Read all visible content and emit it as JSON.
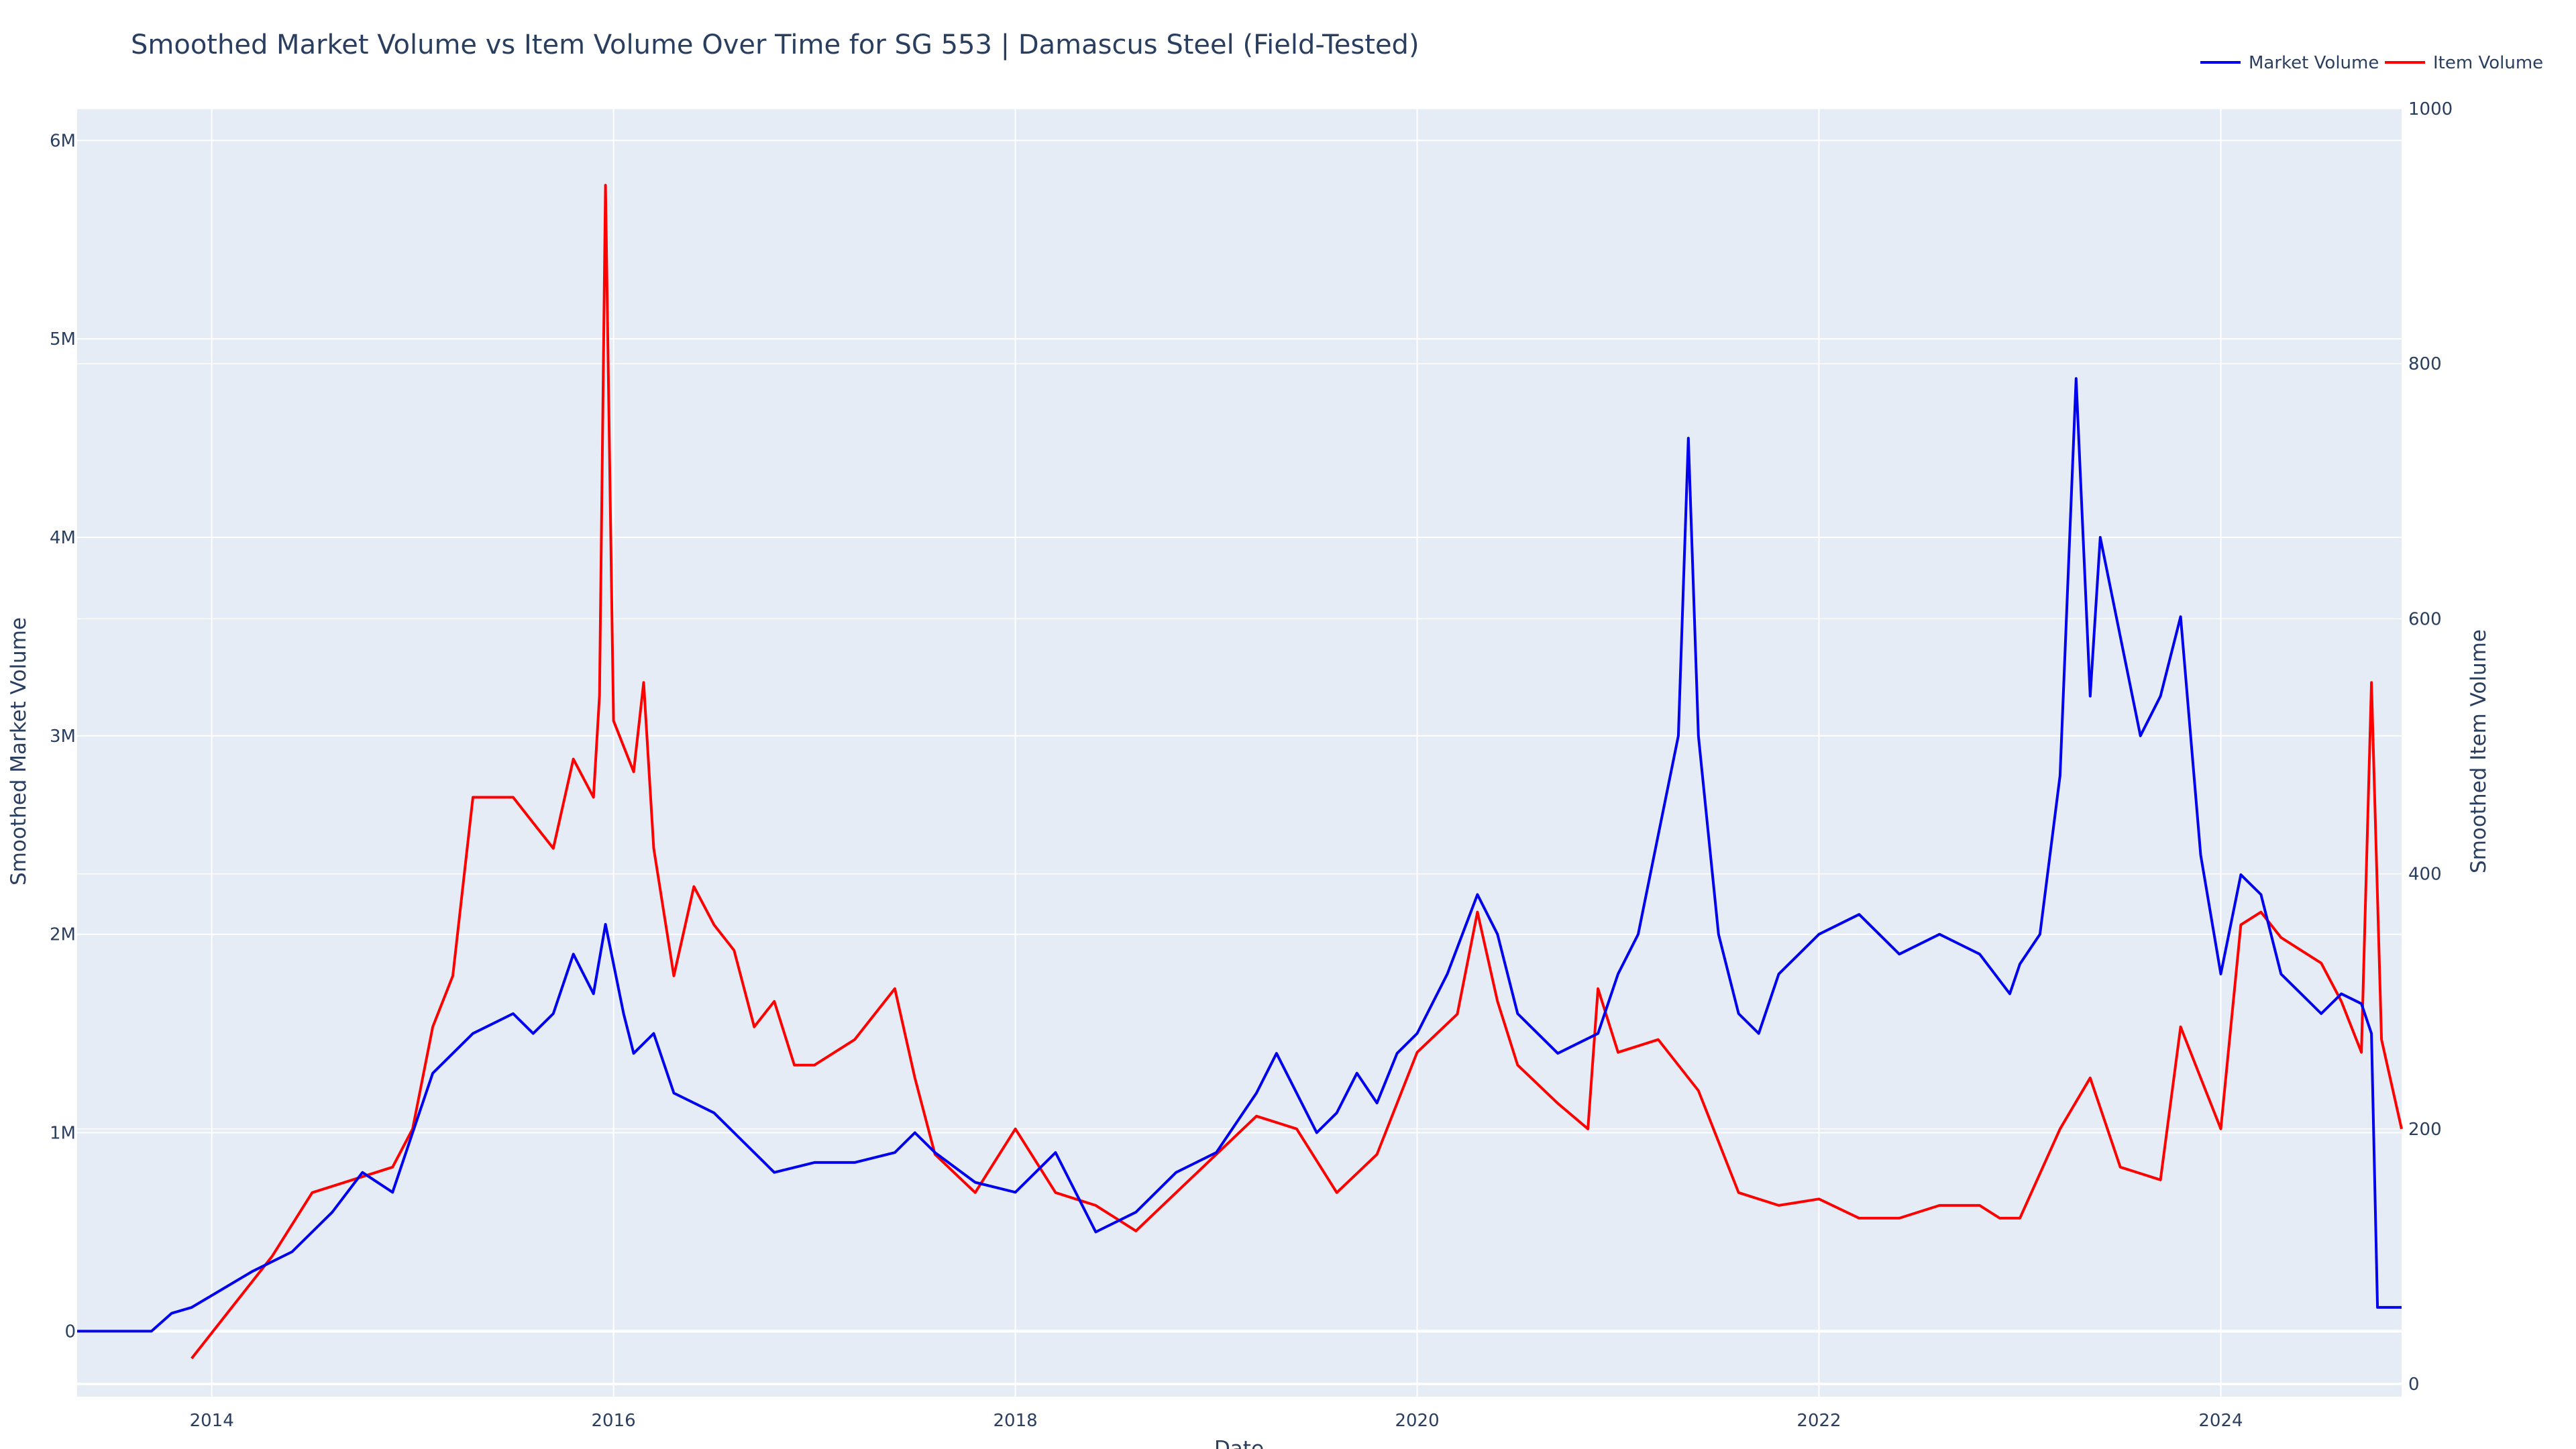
{
  "chart_data": {
    "type": "line",
    "title": "Smoothed Market Volume vs Item Volume Over Time for SG 553 | Damascus Steel (Field-Tested)",
    "xlabel": "Date",
    "ylabel": "Smoothed Market Volume",
    "y2label": "Smoothed Item Volume",
    "x_tick_labels": [
      "2014",
      "2016",
      "2018",
      "2020",
      "2022",
      "2024"
    ],
    "x_tick_years": [
      2014,
      2016,
      2018,
      2020,
      2022,
      2024
    ],
    "xlim": [
      2013.33,
      2024.9
    ],
    "y_tick_labels": [
      "0",
      "1M",
      "2M",
      "3M",
      "4M",
      "5M",
      "6M"
    ],
    "y_tick_values": [
      0,
      1000000,
      2000000,
      3000000,
      4000000,
      5000000,
      6000000
    ],
    "ylim": [
      -330000,
      6160000
    ],
    "y2_tick_labels": [
      "0",
      "200",
      "400",
      "600",
      "800",
      "1000"
    ],
    "y2_tick_values": [
      0,
      200,
      400,
      600,
      800,
      1000
    ],
    "y2lim": [
      -10,
      1000
    ],
    "grid": true,
    "legend_position": "top-right",
    "background_color": "#E5ECF6",
    "grid_color": "#ffffff",
    "series": [
      {
        "name": "Market Volume",
        "axis": "y",
        "color": "#0000EE",
        "x": [
          2013.33,
          2013.7,
          2013.8,
          2013.9,
          2014.0,
          2014.2,
          2014.4,
          2014.6,
          2014.75,
          2014.9,
          2015.0,
          2015.1,
          2015.3,
          2015.5,
          2015.6,
          2015.7,
          2015.8,
          2015.9,
          2015.96,
          2016.05,
          2016.1,
          2016.2,
          2016.3,
          2016.5,
          2016.6,
          2016.8,
          2017.0,
          2017.2,
          2017.4,
          2017.5,
          2017.6,
          2017.8,
          2018.0,
          2018.2,
          2018.4,
          2018.6,
          2018.8,
          2019.0,
          2019.2,
          2019.3,
          2019.5,
          2019.6,
          2019.7,
          2019.8,
          2019.9,
          2020.0,
          2020.15,
          2020.3,
          2020.4,
          2020.5,
          2020.7,
          2020.9,
          2021.0,
          2021.1,
          2021.2,
          2021.3,
          2021.35,
          2021.4,
          2021.5,
          2021.6,
          2021.7,
          2021.8,
          2021.9,
          2022.0,
          2022.2,
          2022.4,
          2022.6,
          2022.8,
          2022.95,
          2023.0,
          2023.1,
          2023.2,
          2023.28,
          2023.35,
          2023.4,
          2023.5,
          2023.6,
          2023.7,
          2023.8,
          2023.9,
          2024.0,
          2024.1,
          2024.2,
          2024.3,
          2024.5,
          2024.6,
          2024.7,
          2024.75,
          2024.78,
          2024.9
        ],
        "y": [
          0,
          0,
          90000,
          120000,
          180000,
          300000,
          400000,
          600000,
          800000,
          700000,
          1000000,
          1300000,
          1500000,
          1600000,
          1500000,
          1600000,
          1900000,
          1700000,
          2050000,
          1600000,
          1400000,
          1500000,
          1200000,
          1100000,
          1000000,
          800000,
          850000,
          850000,
          900000,
          1000000,
          900000,
          750000,
          700000,
          900000,
          500000,
          600000,
          800000,
          900000,
          1200000,
          1400000,
          1000000,
          1100000,
          1300000,
          1150000,
          1400000,
          1500000,
          1800000,
          2200000,
          2000000,
          1600000,
          1400000,
          1500000,
          1800000,
          2000000,
          2500000,
          3000000,
          4500000,
          3000000,
          2000000,
          1600000,
          1500000,
          1800000,
          1900000,
          2000000,
          2100000,
          1900000,
          2000000,
          1900000,
          1700000,
          1850000,
          2000000,
          2800000,
          4800000,
          3200000,
          4000000,
          3500000,
          3000000,
          3200000,
          3600000,
          2400000,
          1800000,
          2300000,
          2200000,
          1800000,
          1600000,
          1700000,
          1650000,
          1500000,
          120000,
          120000
        ]
      },
      {
        "name": "Item Volume",
        "axis": "y2",
        "color": "#FF0000",
        "x": [
          2013.9,
          2014.1,
          2014.3,
          2014.5,
          2014.7,
          2014.9,
          2015.0,
          2015.1,
          2015.2,
          2015.3,
          2015.5,
          2015.6,
          2015.7,
          2015.8,
          2015.9,
          2015.93,
          2015.96,
          2016.0,
          2016.1,
          2016.15,
          2016.2,
          2016.3,
          2016.4,
          2016.5,
          2016.6,
          2016.7,
          2016.8,
          2016.9,
          2017.0,
          2017.2,
          2017.4,
          2017.5,
          2017.6,
          2017.8,
          2018.0,
          2018.2,
          2018.4,
          2018.6,
          2018.8,
          2019.0,
          2019.2,
          2019.4,
          2019.6,
          2019.8,
          2020.0,
          2020.2,
          2020.3,
          2020.4,
          2020.5,
          2020.7,
          2020.85,
          2020.9,
          2021.0,
          2021.2,
          2021.4,
          2021.6,
          2021.8,
          2022.0,
          2022.2,
          2022.4,
          2022.6,
          2022.8,
          2022.9,
          2023.0,
          2023.2,
          2023.35,
          2023.5,
          2023.7,
          2023.8,
          2023.9,
          2024.0,
          2024.1,
          2024.2,
          2024.3,
          2024.5,
          2024.6,
          2024.7,
          2024.75,
          2024.8,
          2024.9
        ],
        "y": [
          20,
          60,
          100,
          150,
          160,
          170,
          200,
          280,
          320,
          460,
          460,
          440,
          420,
          490,
          460,
          540,
          940,
          520,
          480,
          550,
          420,
          320,
          390,
          360,
          340,
          280,
          300,
          250,
          250,
          270,
          310,
          240,
          180,
          150,
          200,
          150,
          140,
          120,
          150,
          180,
          210,
          200,
          150,
          180,
          260,
          290,
          370,
          300,
          250,
          220,
          200,
          310,
          260,
          270,
          230,
          150,
          140,
          145,
          130,
          130,
          140,
          140,
          130,
          130,
          200,
          240,
          170,
          160,
          280,
          240,
          200,
          360,
          370,
          350,
          330,
          300,
          260,
          550,
          270,
          200
        ]
      }
    ]
  }
}
